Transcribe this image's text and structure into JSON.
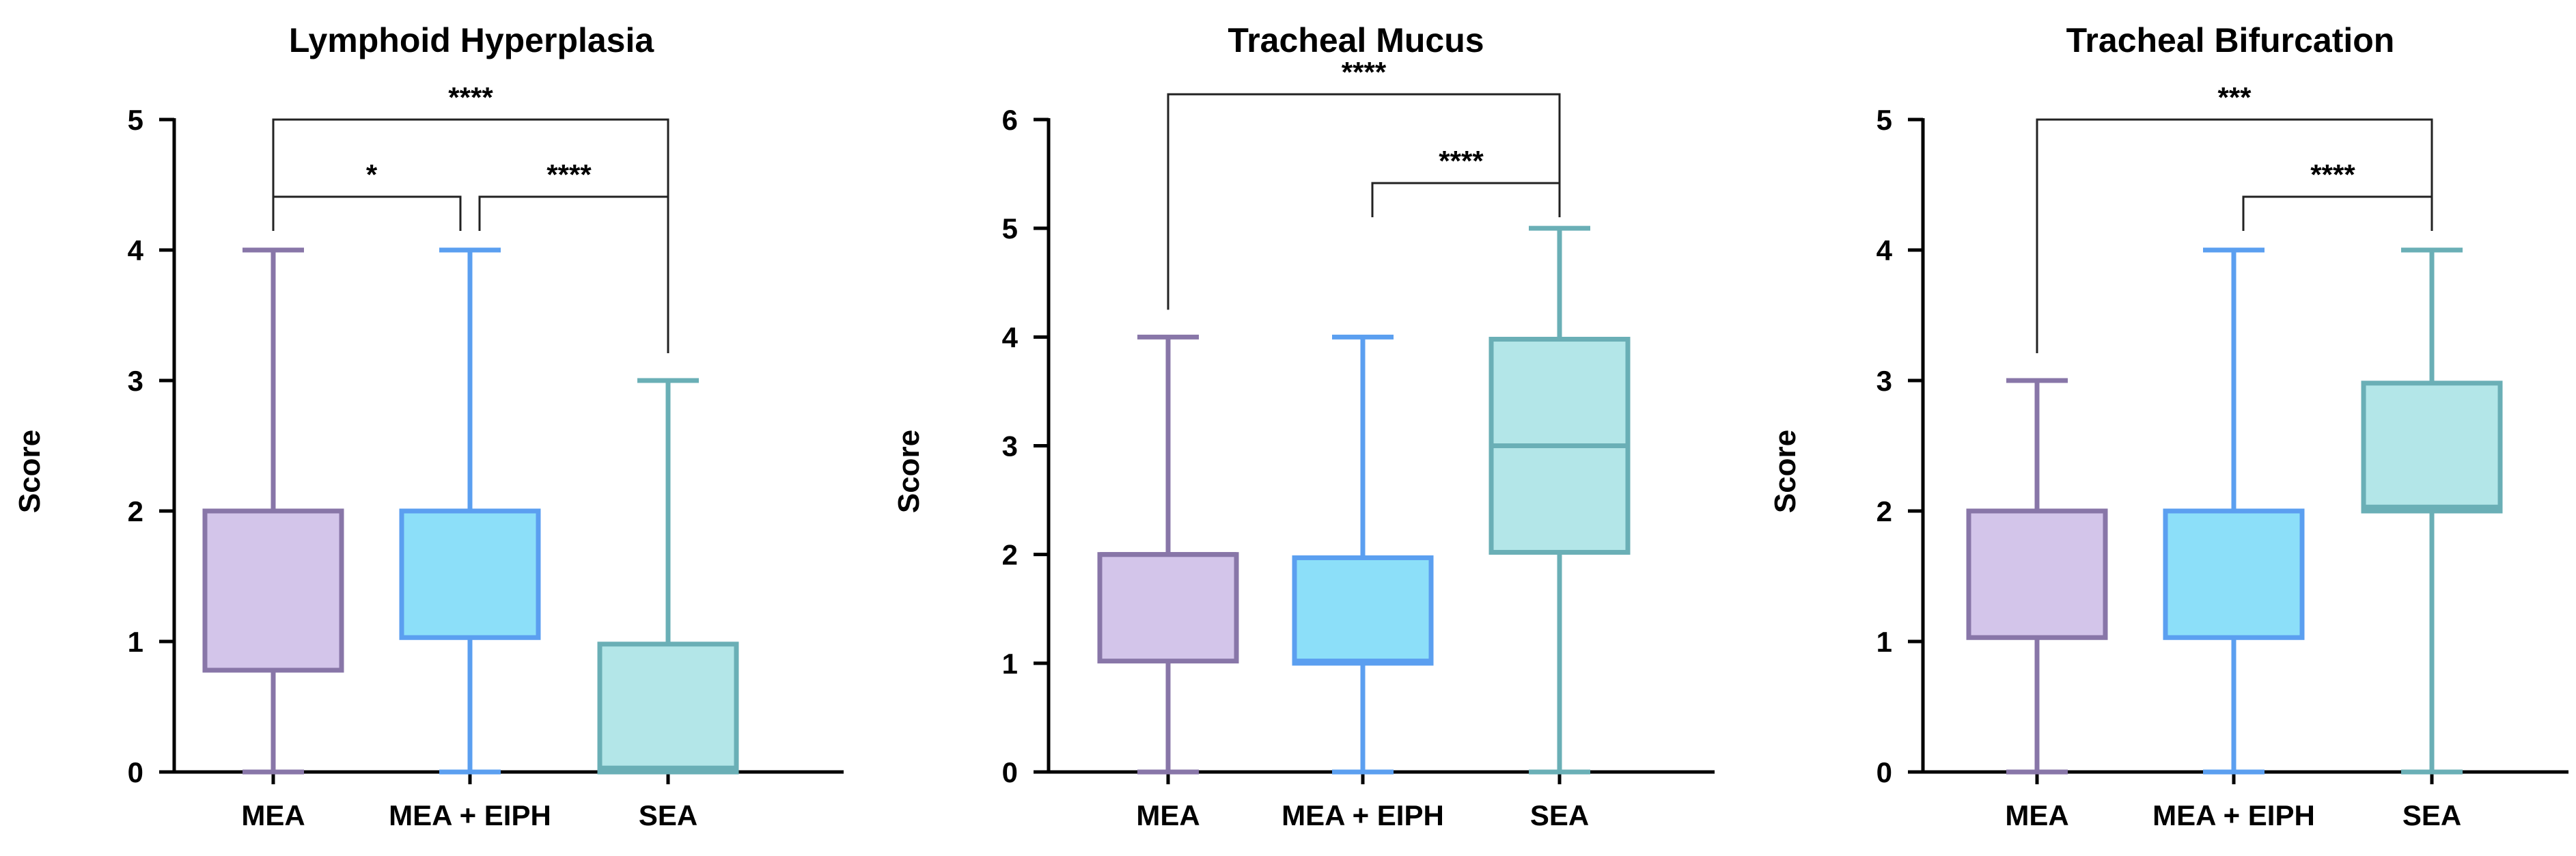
{
  "colors": {
    "MEA": {
      "fill": "#d3c5ea",
      "stroke": "#8876a8"
    },
    "MEA + EIPH": {
      "fill": "#8cdff9",
      "stroke": "#5b9ff0"
    },
    "SEA": {
      "fill": "#b3e6e8",
      "stroke": "#6aafb6"
    }
  },
  "chart_data": [
    {
      "type": "box",
      "title": "Lymphoid Hyperplasia",
      "ylabel": "Score",
      "xlabel": "",
      "ylim": [
        0,
        5
      ],
      "yticks": [
        "0",
        "1",
        "2",
        "3",
        "4",
        "5"
      ],
      "categories": [
        "MEA",
        "MEA + EIPH",
        "SEA"
      ],
      "boxes": [
        {
          "category": "MEA",
          "min": 0,
          "q1": 0.78,
          "median": 2,
          "q3": 2,
          "max": 4
        },
        {
          "category": "MEA + EIPH",
          "min": 0,
          "q1": 1.03,
          "median": 2,
          "q3": 2,
          "max": 4
        },
        {
          "category": "SEA",
          "min": 0,
          "q1": 0,
          "median": 0.03,
          "q3": 0.98,
          "max": 3
        }
      ],
      "significance": [
        {
          "from": "MEA",
          "to": "SEA",
          "label": "****",
          "level": 1
        },
        {
          "from": "MEA",
          "to": "MEA + EIPH",
          "label": "*",
          "level": 0
        },
        {
          "from": "MEA + EIPH",
          "to": "SEA",
          "label": "****",
          "level": 0
        }
      ],
      "grid": false,
      "legend": "none"
    },
    {
      "type": "box",
      "title": "Tracheal Mucus",
      "ylabel": "Score",
      "xlabel": "",
      "ylim": [
        0,
        6
      ],
      "yticks": [
        "0",
        "1",
        "2",
        "3",
        "4",
        "5",
        "6"
      ],
      "categories": [
        "MEA",
        "MEA + EIPH",
        "SEA"
      ],
      "boxes": [
        {
          "category": "MEA",
          "min": 0,
          "q1": 1.02,
          "median": 2,
          "q3": 2,
          "max": 4
        },
        {
          "category": "MEA + EIPH",
          "min": 0,
          "q1": 1,
          "median": 1.02,
          "q3": 1.97,
          "max": 4
        },
        {
          "category": "SEA",
          "min": 0,
          "q1": 2.02,
          "median": 3,
          "q3": 3.98,
          "max": 5
        }
      ],
      "significance": [
        {
          "from": "MEA",
          "to": "SEA",
          "label": "****",
          "level": 1
        },
        {
          "from": "MEA + EIPH",
          "to": "SEA",
          "label": "****",
          "level": 0
        }
      ],
      "grid": false,
      "legend": "none"
    },
    {
      "type": "box",
      "title": "Tracheal Bifurcation",
      "ylabel": "Score",
      "xlabel": "",
      "ylim": [
        0,
        5
      ],
      "yticks": [
        "0",
        "1",
        "2",
        "3",
        "4",
        "5"
      ],
      "categories": [
        "MEA",
        "MEA + EIPH",
        "SEA"
      ],
      "boxes": [
        {
          "category": "MEA",
          "min": 0,
          "q1": 1.03,
          "median": 2,
          "q3": 2,
          "max": 3
        },
        {
          "category": "MEA + EIPH",
          "min": 0,
          "q1": 1.03,
          "median": 2,
          "q3": 2,
          "max": 4
        },
        {
          "category": "SEA",
          "min": 0,
          "q1": 2,
          "median": 2.03,
          "q3": 2.98,
          "max": 4
        }
      ],
      "significance": [
        {
          "from": "MEA",
          "to": "SEA",
          "label": "***",
          "level": 1
        },
        {
          "from": "MEA + EIPH",
          "to": "SEA",
          "label": "****",
          "level": 0
        }
      ],
      "grid": false,
      "legend": "none"
    }
  ]
}
